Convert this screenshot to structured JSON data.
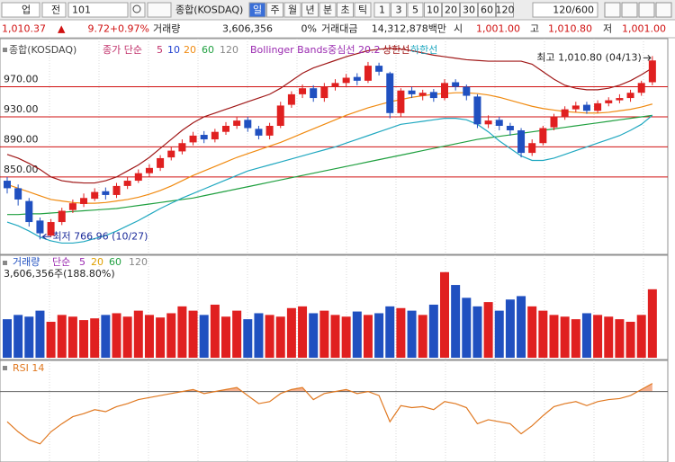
{
  "toolbar": {
    "market": "업",
    "compare": "전",
    "code": "101",
    "name": "종합(KOSDAQ)",
    "periods": [
      "일",
      "주",
      "월",
      "년",
      "분",
      "초",
      "틱"
    ],
    "intervals": [
      "1",
      "3",
      "5",
      "10",
      "20",
      "30",
      "60",
      "120"
    ],
    "count": "120/600"
  },
  "quote": {
    "price": "1,010.37",
    "arrow": "▲",
    "change": "9.72",
    "rate": "+0.97%",
    "volume_label": "거래량",
    "volume": "3,606,356",
    "volume_rate": "0%",
    "amount_label": "거래대금",
    "amount": "14,312,878백만",
    "open_label": "시",
    "open": "1,001.00",
    "high_label": "고",
    "high": "1,010.80",
    "low_label": "저",
    "low": "1,001.00"
  },
  "chart_data": [
    {
      "type": "candlestick",
      "legend": [
        {
          "label": "종합(KOSDAQ)",
          "color": "#444444"
        },
        {
          "label": "종가 단순",
          "color": "#c0306a"
        },
        {
          "label": "5",
          "color": "#c0306a"
        },
        {
          "label": "10",
          "color": "#2040d0"
        },
        {
          "label": "120",
          "color": "#888888"
        },
        {
          "label": "Bollinger Bands중심선 20.2",
          "color": "#9a2ab0"
        }
      ],
      "up_color": "#e02020",
      "down_color": "#2050c0",
      "open": [
        845,
        835,
        818,
        792,
        772,
        790,
        806,
        814,
        821,
        831,
        826,
        838,
        845,
        855,
        862,
        876,
        884,
        896,
        906,
        900,
        910,
        918,
        926,
        914,
        905,
        918,
        946,
        960,
        968,
        955,
        970,
        975,
        983,
        978,
        998,
        988,
        935,
        965,
        958,
        963,
        955,
        976,
        970,
        957,
        920,
        926,
        918,
        912,
        882,
        895,
        916,
        930,
        940,
        946,
        938,
        948,
        952,
        955,
        962,
        976
      ],
      "high": [
        850,
        840,
        822,
        796,
        794,
        809,
        820,
        828,
        835,
        836,
        842,
        850,
        860,
        867,
        879,
        890,
        900,
        910,
        911,
        914,
        923,
        930,
        930,
        918,
        922,
        950,
        964,
        973,
        972,
        975,
        980,
        987,
        988,
        1003,
        1002,
        990,
        968,
        970,
        966,
        967,
        980,
        980,
        973,
        960,
        932,
        930,
        922,
        915,
        900,
        918,
        934,
        944,
        950,
        950,
        952,
        956,
        960,
        966,
        978,
        1010.8
      ],
      "low": [
        828,
        812,
        784,
        766.96,
        770,
        786,
        802,
        810,
        818,
        820,
        822,
        834,
        842,
        850,
        858,
        872,
        880,
        892,
        895,
        896,
        906,
        914,
        910,
        900,
        900,
        915,
        942,
        955,
        950,
        950,
        965,
        970,
        972,
        975,
        985,
        928,
        930,
        955,
        952,
        950,
        952,
        965,
        952,
        915,
        915,
        912,
        905,
        876,
        878,
        892,
        912,
        926,
        936,
        934,
        935,
        944,
        948,
        950,
        958,
        972
      ],
      "close": [
        835,
        820,
        790,
        775,
        790,
        805,
        815,
        822,
        830,
        826,
        838,
        845,
        855,
        862,
        875,
        885,
        895,
        905,
        900,
        910,
        918,
        925,
        915,
        905,
        918,
        945,
        960,
        968,
        955,
        970,
        975,
        982,
        978,
        998,
        990,
        935,
        965,
        960,
        962,
        955,
        975,
        970,
        958,
        920,
        925,
        918,
        912,
        882,
        895,
        915,
        930,
        940,
        945,
        938,
        948,
        952,
        955,
        962,
        975,
        1005
      ],
      "series": [
        {
          "name": "20",
          "color": "#f08a10",
          "values": [
            840,
            835,
            830,
            825,
            820,
            818,
            816,
            815,
            815,
            816,
            818,
            820,
            823,
            827,
            832,
            838,
            845,
            852,
            858,
            864,
            870,
            876,
            881,
            886,
            891,
            896,
            902,
            908,
            914,
            920,
            926,
            932,
            937,
            942,
            946,
            950,
            953,
            956,
            958,
            960,
            961,
            962,
            962,
            961,
            959,
            956,
            952,
            948,
            944,
            941,
            939,
            937,
            936,
            935,
            935,
            936,
            938,
            940,
            943,
            947
          ]
        },
        {
          "name": "60",
          "color": "#20a040",
          "values": [
            800,
            800,
            801,
            801,
            802,
            803,
            804,
            805,
            806,
            807,
            808,
            810,
            812,
            814,
            816,
            818,
            820,
            822,
            825,
            828,
            831,
            834,
            837,
            840,
            843,
            846,
            849,
            852,
            855,
            858,
            861,
            864,
            867,
            870,
            873,
            876,
            879,
            882,
            885,
            888,
            891,
            894,
            897,
            900,
            902,
            904,
            906,
            908,
            910,
            912,
            914,
            916,
            918,
            920,
            922,
            924,
            926,
            928,
            930,
            932
          ]
        },
        {
          "name": "상한선",
          "color": "#a01818",
          "values": [
            880,
            875,
            868,
            860,
            850,
            845,
            843,
            842,
            842,
            845,
            850,
            858,
            866,
            876,
            888,
            900,
            912,
            922,
            930,
            935,
            940,
            945,
            950,
            955,
            960,
            968,
            978,
            988,
            995,
            1000,
            1005,
            1010,
            1014,
            1018,
            1020,
            1021,
            1020,
            1018,
            1015,
            1012,
            1010,
            1008,
            1006,
            1005,
            1004,
            1004,
            1004,
            1004,
            1000,
            990,
            980,
            972,
            968,
            966,
            966,
            968,
            972,
            978,
            986,
            995
          ]
        },
        {
          "name": "하한선",
          "color": "#20a8c0",
          "values": [
            790,
            785,
            778,
            770,
            765,
            762,
            762,
            764,
            768,
            772,
            778,
            785,
            792,
            800,
            808,
            815,
            822,
            828,
            834,
            840,
            846,
            852,
            858,
            862,
            866,
            870,
            874,
            878,
            882,
            886,
            890,
            895,
            900,
            905,
            910,
            915,
            920,
            922,
            924,
            926,
            928,
            928,
            926,
            920,
            910,
            898,
            888,
            878,
            872,
            872,
            875,
            880,
            885,
            890,
            895,
            900,
            905,
            912,
            920,
            932
          ]
        }
      ],
      "ylim": [
        747,
        1034
      ],
      "yticks": [
        {
          "value": 970,
          "label": "970.00"
        },
        {
          "value": 930,
          "label": "930.00"
        },
        {
          "value": 890,
          "label": "890.00"
        },
        {
          "value": 850,
          "label": "850.00"
        }
      ],
      "grid_color": "#d01010",
      "annotations": [
        "최고 1,010.80 (04/13)",
        "최저 766.96 (10/27)"
      ]
    },
    {
      "type": "bar",
      "legend": [
        {
          "label": "거래량",
          "color": "#2050c0"
        },
        {
          "label": "단순",
          "color": "#9a2ab0"
        },
        {
          "label": "5",
          "color": "#9a2ab0"
        },
        {
          "label": "20",
          "color": "#e0a000"
        },
        {
          "label": "60",
          "color": "#20a040"
        },
        {
          "label": "120",
          "color": "#888888"
        }
      ],
      "caption": "3,606,356주(188.80%)",
      "values": [
        45,
        50,
        48,
        55,
        42,
        50,
        48,
        44,
        46,
        50,
        52,
        48,
        55,
        50,
        47,
        52,
        60,
        55,
        50,
        62,
        48,
        55,
        45,
        52,
        50,
        48,
        58,
        60,
        52,
        55,
        50,
        48,
        54,
        50,
        52,
        60,
        58,
        55,
        50,
        62,
        100,
        85,
        70,
        60,
        65,
        55,
        68,
        72,
        60,
        55,
        50,
        48,
        45,
        52,
        50,
        48,
        45,
        42,
        50,
        80
      ],
      "ylim": [
        0,
        105
      ]
    },
    {
      "type": "line",
      "name": "RSI 14",
      "color": "#e07820",
      "fill": "#f4b090",
      "values": [
        40,
        30,
        22,
        18,
        30,
        38,
        45,
        48,
        52,
        50,
        55,
        58,
        62,
        64,
        66,
        68,
        70,
        72,
        68,
        70,
        72,
        74,
        66,
        58,
        60,
        68,
        72,
        74,
        62,
        68,
        70,
        72,
        68,
        70,
        66,
        40,
        56,
        54,
        55,
        52,
        60,
        58,
        54,
        38,
        42,
        40,
        38,
        28,
        36,
        46,
        55,
        58,
        60,
        56,
        60,
        62,
        63,
        66,
        72,
        78
      ],
      "ylim": [
        0,
        100
      ],
      "reference_line": 70
    }
  ]
}
